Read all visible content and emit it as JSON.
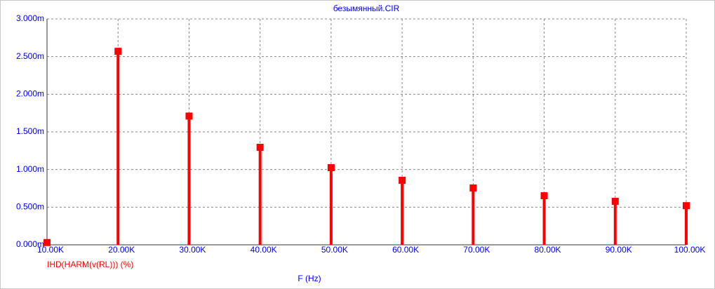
{
  "chart_data": {
    "type": "stem",
    "title": "безымянный.CIR",
    "x_label": "F (Hz)",
    "x": [
      10000,
      20000,
      30000,
      40000,
      50000,
      60000,
      70000,
      80000,
      90000,
      100000
    ],
    "series": [
      {
        "name": "IHD(HARM(v(RL))) (%)",
        "color": "#ff0000",
        "values": [
          0.03,
          2.57,
          1.71,
          1.295,
          1.025,
          0.857,
          0.755,
          0.652,
          0.578,
          0.52
        ]
      }
    ],
    "xlim": [
      10000,
      100000
    ],
    "xticks": [
      {
        "value": 10000,
        "label": "10.00K"
      },
      {
        "value": 20000,
        "label": "20.00K"
      },
      {
        "value": 30000,
        "label": "30.00K"
      },
      {
        "value": 40000,
        "label": "40.00K"
      },
      {
        "value": 50000,
        "label": "50.00K"
      },
      {
        "value": 60000,
        "label": "60.00K"
      },
      {
        "value": 70000,
        "label": "70.00K"
      },
      {
        "value": 80000,
        "label": "80.00K"
      },
      {
        "value": 90000,
        "label": "90.00K"
      },
      {
        "value": 100000,
        "label": "100.00K"
      }
    ],
    "ylim": [
      0,
      3
    ],
    "yticks": [
      {
        "value": 0,
        "label": "0.000m"
      },
      {
        "value": 0.5,
        "label": "0.500m"
      },
      {
        "value": 1,
        "label": "1.000m"
      },
      {
        "value": 1.5,
        "label": "1.500m"
      },
      {
        "value": 2,
        "label": "2.000m"
      },
      {
        "value": 2.5,
        "label": "2.500m"
      },
      {
        "value": 3,
        "label": "3.000m"
      }
    ],
    "grid": true
  }
}
